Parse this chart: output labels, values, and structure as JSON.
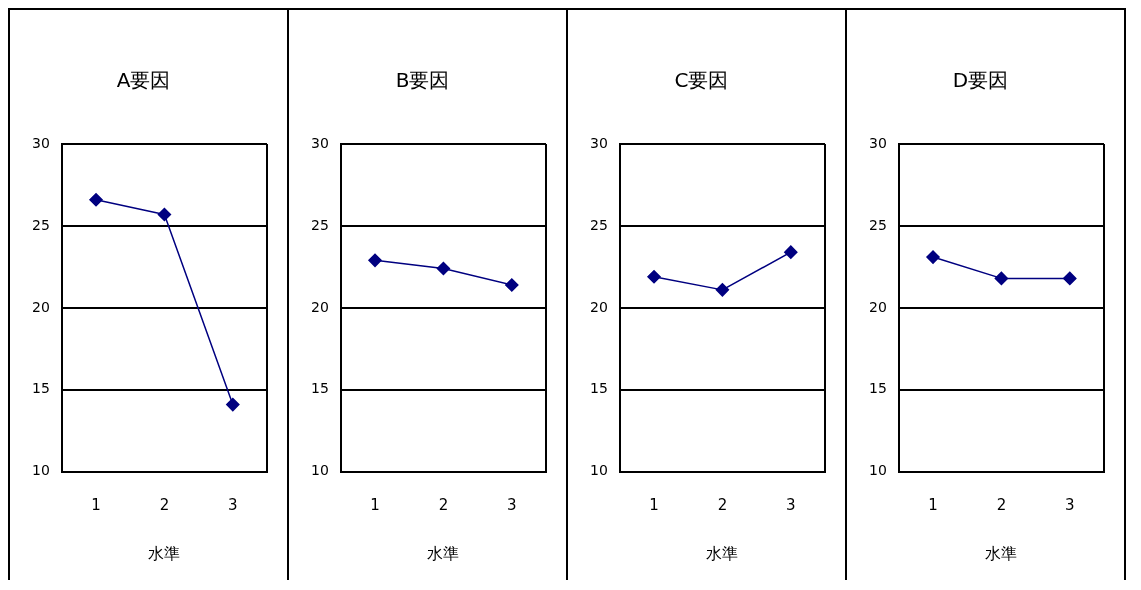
{
  "chart_data": [
    {
      "type": "line",
      "title": "A要因",
      "xlabel": "水準",
      "categories": [
        "1",
        "2",
        "3"
      ],
      "series": [
        {
          "color": "#000080",
          "values": [
            26.6,
            25.7,
            14.1
          ]
        }
      ],
      "ylim": [
        10,
        30
      ],
      "yticks": [
        10,
        15,
        20,
        25,
        30
      ],
      "grid": "y",
      "legend": false,
      "marker": "diamond",
      "line_style": "solid"
    },
    {
      "type": "line",
      "title": "B要因",
      "xlabel": "水準",
      "categories": [
        "1",
        "2",
        "3"
      ],
      "series": [
        {
          "color": "#000080",
          "values": [
            22.9,
            22.4,
            21.4
          ]
        }
      ],
      "ylim": [
        10,
        30
      ],
      "yticks": [
        10,
        15,
        20,
        25,
        30
      ],
      "grid": "y",
      "legend": false,
      "marker": "diamond",
      "line_style": "solid"
    },
    {
      "type": "line",
      "title": "C要因",
      "xlabel": "水準",
      "categories": [
        "1",
        "2",
        "3"
      ],
      "series": [
        {
          "color": "#000080",
          "values": [
            21.9,
            21.1,
            23.4
          ]
        }
      ],
      "ylim": [
        10,
        30
      ],
      "yticks": [
        10,
        15,
        20,
        25,
        30
      ],
      "grid": "y",
      "legend": false,
      "marker": "diamond",
      "line_style": "solid"
    },
    {
      "type": "line",
      "title": "D要因",
      "xlabel": "水準",
      "categories": [
        "1",
        "2",
        "3"
      ],
      "series": [
        {
          "color": "#000080",
          "values": [
            23.1,
            21.8,
            21.8
          ]
        }
      ],
      "ylim": [
        10,
        30
      ],
      "yticks": [
        10,
        15,
        20,
        25,
        30
      ],
      "grid": "y",
      "legend": false,
      "marker": "diamond",
      "line_style": "solid"
    }
  ]
}
